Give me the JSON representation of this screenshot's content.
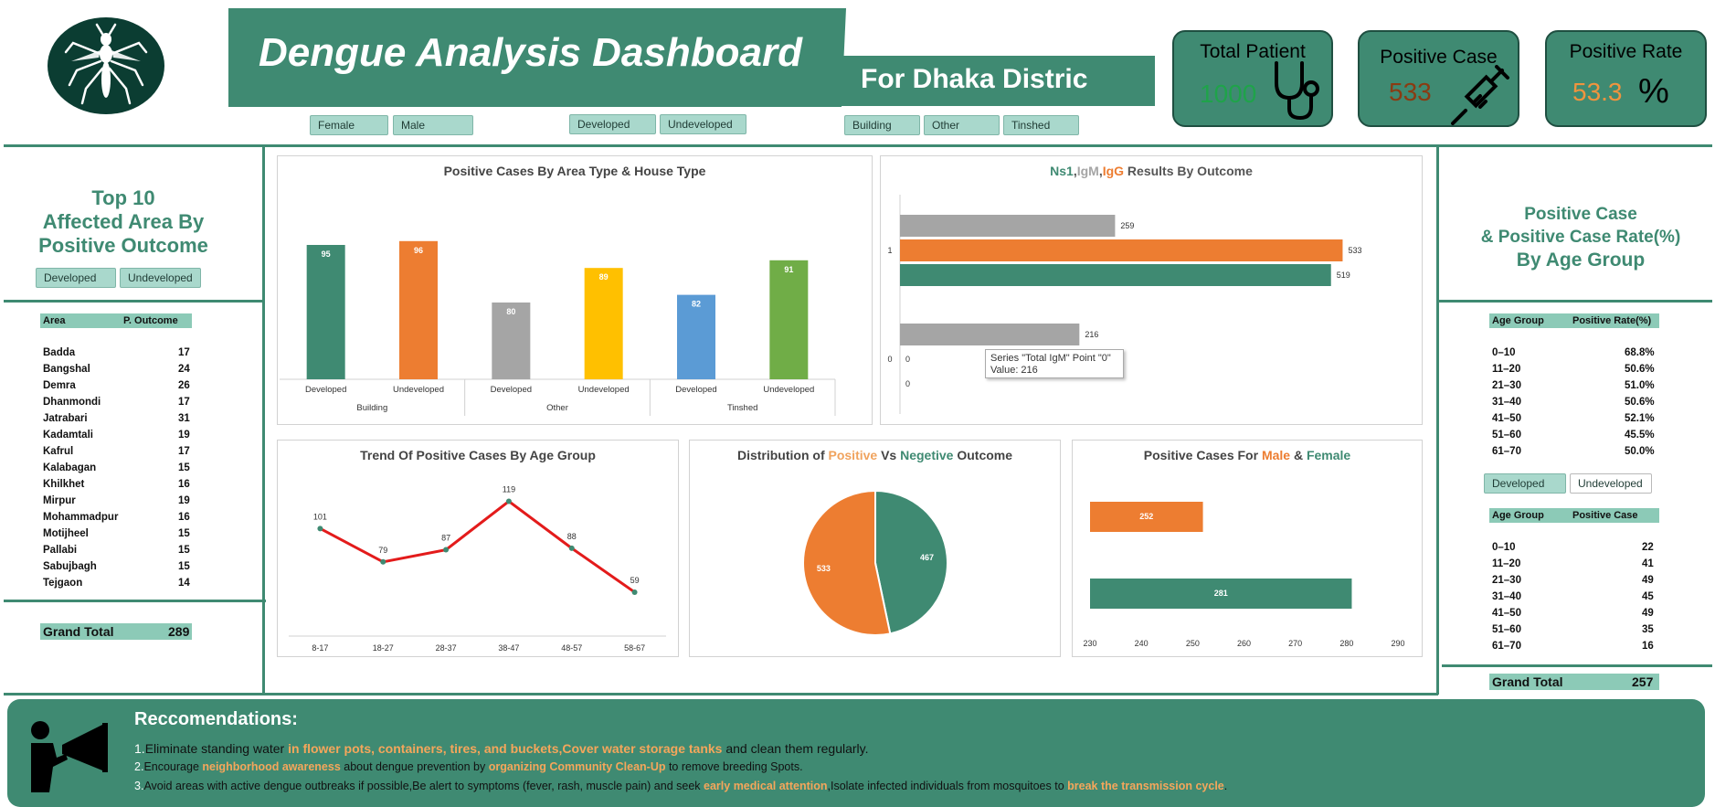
{
  "header": {
    "title": "Dengue Analysis Dashboard",
    "subtitle": "For Dhaka Distric"
  },
  "slicers": {
    "gender": [
      "Female",
      "Male"
    ],
    "area_type": [
      "Developed",
      "Undeveloped"
    ],
    "house_type": [
      "Building",
      "Other",
      "Tinshed"
    ]
  },
  "kpis": {
    "total_patient": {
      "title": "Total Patient",
      "value": "1000"
    },
    "positive_case": {
      "title": "Positive Case",
      "value": "533"
    },
    "positive_rate": {
      "title": "Positive Rate",
      "value": "53.3",
      "unit": "%"
    }
  },
  "colors": {
    "brand_green": "#3f8a72",
    "orange": "#ed7d31",
    "gray": "#a5a5a5",
    "yellow": "#ffc000",
    "blue": "#5b9bd5",
    "light_green": "#70ad47",
    "red": "#e31b1b"
  },
  "left_panel": {
    "title_line1": "Top 10",
    "title_line2": "Affected Area By",
    "title_line3": "Positive Outcome",
    "slicer": [
      "Developed",
      "Undeveloped"
    ],
    "table_header": [
      "Area",
      "P. Outcome"
    ],
    "rows": [
      {
        "area": "Badda",
        "value": "17"
      },
      {
        "area": "Bangshal",
        "value": "24"
      },
      {
        "area": "Demra",
        "value": "26"
      },
      {
        "area": "Dhanmondi",
        "value": "17"
      },
      {
        "area": "Jatrabari",
        "value": "31"
      },
      {
        "area": "Kadamtali",
        "value": "19"
      },
      {
        "area": "Kafrul",
        "value": "17"
      },
      {
        "area": "Kalabagan",
        "value": "15"
      },
      {
        "area": "Khilkhet",
        "value": "16"
      },
      {
        "area": "Mirpur",
        "value": "19"
      },
      {
        "area": "Mohammadpur",
        "value": "16"
      },
      {
        "area": "Motijheel",
        "value": "15"
      },
      {
        "area": "Pallabi",
        "value": "15"
      },
      {
        "area": "Sabujbagh",
        "value": "15"
      },
      {
        "area": "Tejgaon",
        "value": "14"
      }
    ],
    "grand_total_label": "Grand Total",
    "grand_total_value": "289"
  },
  "right_panel": {
    "title_line1": "Positive Case",
    "title_line2": "& Positive Case Rate(%)",
    "title_line3": "By Age Group",
    "rate_header": [
      "Age Group",
      "Positive  Rate(%)"
    ],
    "rate_rows": [
      {
        "age": "0–10",
        "value": "68.8%"
      },
      {
        "age": "11–20",
        "value": "50.6%"
      },
      {
        "age": "21–30",
        "value": "51.0%"
      },
      {
        "age": "31–40",
        "value": "50.6%"
      },
      {
        "age": "41–50",
        "value": "52.1%"
      },
      {
        "age": "51–60",
        "value": "45.5%"
      },
      {
        "age": "61–70",
        "value": "50.0%"
      }
    ],
    "slicer": [
      "Developed",
      "Undeveloped"
    ],
    "case_header": [
      "Age Group",
      "Positive Case"
    ],
    "case_rows": [
      {
        "age": "0–10",
        "value": "22"
      },
      {
        "age": "11–20",
        "value": "41"
      },
      {
        "age": "21–30",
        "value": "49"
      },
      {
        "age": "31–40",
        "value": "45"
      },
      {
        "age": "41–50",
        "value": "49"
      },
      {
        "age": "51–60",
        "value": "35"
      },
      {
        "age": "61–70",
        "value": "16"
      }
    ],
    "grand_total_label": "Grand Total",
    "grand_total_value": "257"
  },
  "chart_data": [
    {
      "id": "area_house",
      "type": "bar",
      "title": "Positive Cases By Area Type & House Type",
      "groups": [
        "Building",
        "Other",
        "Tinshed"
      ],
      "categories": [
        "Developed",
        "Undeveloped",
        "Developed",
        "Undeveloped",
        "Developed",
        "Undeveloped"
      ],
      "values": [
        95,
        96,
        80,
        89,
        82,
        91
      ],
      "colors": [
        "#3f8a72",
        "#ed7d31",
        "#a5a5a5",
        "#ffc000",
        "#5b9bd5",
        "#70ad47"
      ],
      "ylim": [
        60,
        100
      ]
    },
    {
      "id": "tests",
      "type": "bar",
      "orientation": "horizontal",
      "title_parts": [
        {
          "text": "Ns1",
          "color": "#3f8a72"
        },
        {
          "text": ",",
          "color": "#555555"
        },
        {
          "text": "IgM",
          "color": "#a5a5a5"
        },
        {
          "text": ",",
          "color": "#555555"
        },
        {
          "text": "IgG",
          "color": "#ed7d31"
        },
        {
          "text": " Results By Outcome",
          "color": "#555555"
        }
      ],
      "categories": [
        "1",
        "0"
      ],
      "series": [
        {
          "color": "#a5a5a5",
          "values": [
            259,
            216
          ]
        },
        {
          "color": "#ed7d31",
          "values": [
            533,
            0
          ]
        },
        {
          "color": "#3f8a72",
          "values": [
            519,
            0
          ]
        }
      ],
      "xlim": [
        0,
        560
      ],
      "tooltip_line1": "Series \"Total IgM\" Point \"0\"",
      "tooltip_line2": "Value: 216"
    },
    {
      "id": "age_trend",
      "type": "line",
      "title": "Trend Of Positive Cases By Age Group",
      "categories": [
        "8-17",
        "18-27",
        "28-37",
        "38-47",
        "48-57",
        "58-67"
      ],
      "values": [
        101,
        79,
        87,
        119,
        88,
        59
      ],
      "color": "#e31b1b",
      "ylim": [
        30,
        135
      ]
    },
    {
      "id": "outcome_pie",
      "type": "pie",
      "title_parts": [
        {
          "text": "Distribution of ",
          "color": "#444444"
        },
        {
          "text": "Positive",
          "color": "#f0a35e"
        },
        {
          "text": " Vs ",
          "color": "#444444"
        },
        {
          "text": "Negetive",
          "color": "#3f8a72"
        },
        {
          "text": " Outcome",
          "color": "#444444"
        }
      ],
      "labels": [
        "",
        ""
      ],
      "values": [
        467,
        533
      ],
      "colors": [
        "#3f8a72",
        "#ed7d31"
      ]
    },
    {
      "id": "gender",
      "type": "bar",
      "orientation": "horizontal",
      "title_parts": [
        {
          "text": "Positive Cases For ",
          "color": "#444444"
        },
        {
          "text": "Male",
          "color": "#ed7d31"
        },
        {
          "text": " & ",
          "color": "#444444"
        },
        {
          "text": "Female",
          "color": "#3f8a72"
        }
      ],
      "categories": [
        "",
        ""
      ],
      "values": [
        252,
        281
      ],
      "colors": [
        "#ed7d31",
        "#3f8a72"
      ],
      "xlim": [
        230,
        290
      ],
      "xticks": [
        "230",
        "240",
        "250",
        "260",
        "270",
        "280",
        "290"
      ]
    }
  ],
  "recommendations": {
    "heading": "Reccomendations:",
    "items": [
      [
        {
          "text": "1.",
          "style": "num"
        },
        {
          "text": "Eliminate standing water ",
          "style": "plain"
        },
        {
          "text": "in flower pots, containers, tires, and buckets,Cover water storage tanks",
          "style": "hl"
        },
        {
          "text": " and clean them regularly",
          "style": "plain"
        },
        {
          "text": ".",
          "style": "plain"
        }
      ],
      [
        {
          "text": "2.",
          "style": "num"
        },
        {
          "text": "Encourage ",
          "style": "plain"
        },
        {
          "text": "neighborhood awareness",
          "style": "hl"
        },
        {
          "text": " about dengue prevention by ",
          "style": "plain"
        },
        {
          "text": "organizing Community Clean-Up",
          "style": "hl"
        },
        {
          "text": " to remove breeding Spots.",
          "style": "plain"
        }
      ],
      [
        {
          "text": "3.",
          "style": "num"
        },
        {
          "text": "Avoid areas with active dengue outbreaks if possible,Be alert to symptoms (fever, rash, muscle pain) and seek ",
          "style": "plain"
        },
        {
          "text": "early medical attention",
          "style": "hl"
        },
        {
          "text": ",Isolate infected individuals from mosquitoes to ",
          "style": "plain"
        },
        {
          "text": "break the transmission cycle",
          "style": "hl"
        },
        {
          "text": ".",
          "style": "plain"
        }
      ]
    ]
  }
}
